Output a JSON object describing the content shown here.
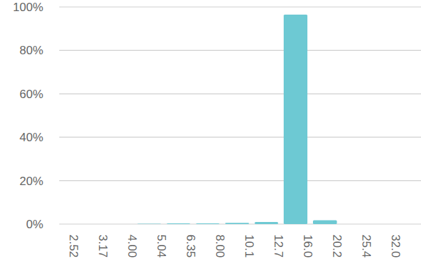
{
  "chart_data": {
    "type": "histogram",
    "bins": [
      2.52,
      3.17,
      4,
      5.04,
      6.35,
      8,
      10.1,
      12.7,
      16,
      20.2,
      25.4,
      32
    ],
    "values": [
      0,
      0,
      0.2,
      0.3,
      0.3,
      0.6,
      1.0,
      96.5,
      1.8,
      0,
      0
    ],
    "color": "#6dc9d3",
    "log": "x",
    "xlim": [
      2.52,
      32
    ],
    "xticks": [
      2.52,
      3.17,
      {
        "value": 4,
        "label": "4.00"
      },
      5.04,
      6.35,
      {
        "value": 8,
        "label": "8.00"
      },
      10.1,
      12.7,
      {
        "value": 16,
        "label": "16.0"
      },
      20.2,
      25.4,
      {
        "value": 32,
        "label": "32.0"
      }
    ],
    "ylim": [
      0,
      100
    ],
    "yticks": [
      {
        "value": 0,
        "label": "0%"
      },
      {
        "value": 20,
        "label": "20%"
      },
      {
        "value": 40,
        "label": "40%"
      },
      {
        "value": 60,
        "label": "60%"
      },
      {
        "value": 80,
        "label": "80%"
      },
      {
        "value": 100,
        "label": "100%"
      }
    ],
    "grid": true
  }
}
